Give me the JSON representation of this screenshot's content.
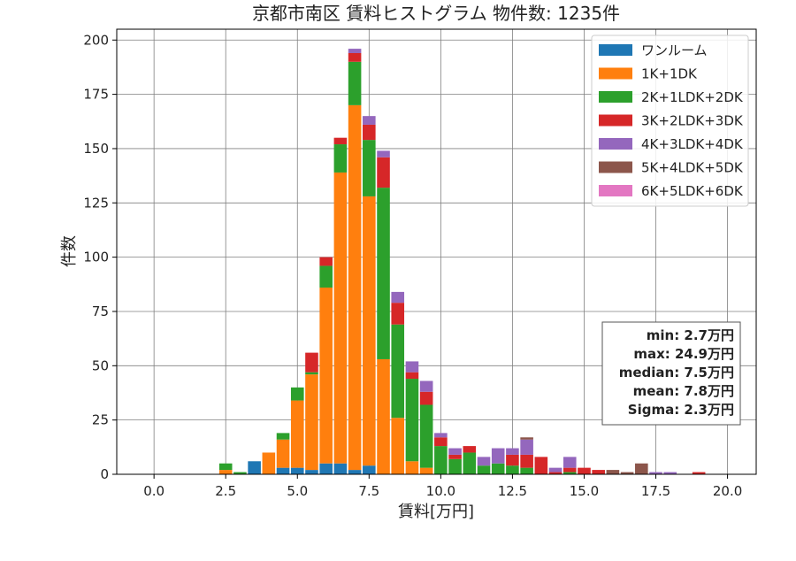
{
  "chart_data": {
    "type": "bar",
    "stacked": true,
    "title": "京都市南区 賃料ヒストグラム 物件数: 1235件",
    "xlabel": "賃料[万円]",
    "ylabel": "件数",
    "xlim": [
      -1.3,
      21.0
    ],
    "ylim": [
      0,
      205
    ],
    "x_ticks": [
      0.0,
      2.5,
      5.0,
      7.5,
      10.0,
      12.5,
      15.0,
      17.5,
      20.0
    ],
    "x_tick_labels": [
      "0.0",
      "2.5",
      "5.0",
      "7.5",
      "10.0",
      "12.5",
      "15.0",
      "17.5",
      "20.0"
    ],
    "y_ticks": [
      0,
      25,
      50,
      75,
      100,
      125,
      150,
      175,
      200
    ],
    "y_tick_labels": [
      "0",
      "25",
      "50",
      "75",
      "100",
      "125",
      "150",
      "175",
      "200"
    ],
    "grid": true,
    "legend_position": "top-right",
    "bin_width": 0.5,
    "bin_starts": [
      2.25,
      2.75,
      3.25,
      3.75,
      4.25,
      4.75,
      5.25,
      5.75,
      6.25,
      6.75,
      7.25,
      7.75,
      8.25,
      8.75,
      9.25,
      9.75,
      10.25,
      10.75,
      11.25,
      11.75,
      12.25,
      12.75,
      13.25,
      13.75,
      14.25,
      14.75,
      15.25,
      15.75,
      16.25,
      16.75,
      17.25,
      17.75,
      18.25,
      18.75
    ],
    "series": [
      {
        "name": "ワンルーム",
        "color": "#1f77b4",
        "values": [
          0,
          0,
          6,
          0,
          3,
          3,
          2,
          5,
          5,
          2,
          4,
          0,
          0,
          0,
          0,
          0,
          0,
          0,
          0,
          0,
          0,
          0,
          0,
          0,
          0,
          0,
          0,
          0,
          0,
          0,
          0,
          0,
          0,
          0
        ]
      },
      {
        "name": "1K+1DK",
        "color": "#ff7f0e",
        "values": [
          2,
          0,
          0,
          10,
          13,
          31,
          44,
          81,
          134,
          168,
          124,
          53,
          26,
          6,
          3,
          0,
          0,
          0,
          0,
          0,
          0,
          0,
          0,
          0,
          0,
          0,
          0,
          0,
          0,
          0,
          0,
          0,
          0,
          0
        ]
      },
      {
        "name": "2K+1LDK+2DK",
        "color": "#2ca02c",
        "values": [
          3,
          1,
          0,
          0,
          3,
          6,
          1,
          10,
          13,
          20,
          26,
          79,
          43,
          38,
          29,
          13,
          7,
          10,
          4,
          5,
          4,
          3,
          0,
          0,
          1,
          0,
          0,
          0,
          0,
          0,
          0,
          0,
          0,
          0
        ]
      },
      {
        "name": "3K+2LDK+3DK",
        "color": "#d62728",
        "values": [
          0,
          0,
          0,
          0,
          0,
          0,
          9,
          4,
          3,
          4,
          7,
          14,
          10,
          3,
          6,
          4,
          2,
          3,
          0,
          0,
          5,
          6,
          8,
          1,
          2,
          3,
          2,
          0,
          0,
          0,
          0,
          0,
          0,
          1
        ]
      },
      {
        "name": "4K+3LDK+4DK",
        "color": "#9467bd",
        "values": [
          0,
          0,
          0,
          0,
          0,
          0,
          0,
          0,
          0,
          2,
          4,
          3,
          5,
          5,
          5,
          2,
          3,
          0,
          4,
          7,
          3,
          7,
          0,
          2,
          5,
          0,
          0,
          0,
          0,
          0,
          1,
          1,
          0,
          0
        ]
      },
      {
        "name": "5K+4LDK+5DK",
        "color": "#8c564b",
        "values": [
          0,
          0,
          0,
          0,
          0,
          0,
          0,
          0,
          0,
          0,
          0,
          0,
          0,
          0,
          0,
          0,
          0,
          0,
          0,
          0,
          0,
          1,
          0,
          0,
          0,
          0,
          0,
          2,
          1,
          5,
          0,
          0,
          0,
          0
        ]
      },
      {
        "name": "6K+5LDK+6DK",
        "color": "#e377c2",
        "values": [
          0,
          0,
          0,
          0,
          0,
          0,
          0,
          0,
          0,
          0,
          0,
          0,
          0,
          0,
          0,
          0,
          0,
          0,
          0,
          0,
          0,
          0,
          0,
          0,
          0,
          0,
          0,
          0,
          0,
          0,
          0,
          0,
          0,
          0
        ]
      }
    ],
    "stats_box": [
      "min: 2.7万円",
      "max: 24.9万円",
      "median: 7.5万円",
      "mean: 7.8万円",
      "Sigma: 2.3万円"
    ]
  }
}
